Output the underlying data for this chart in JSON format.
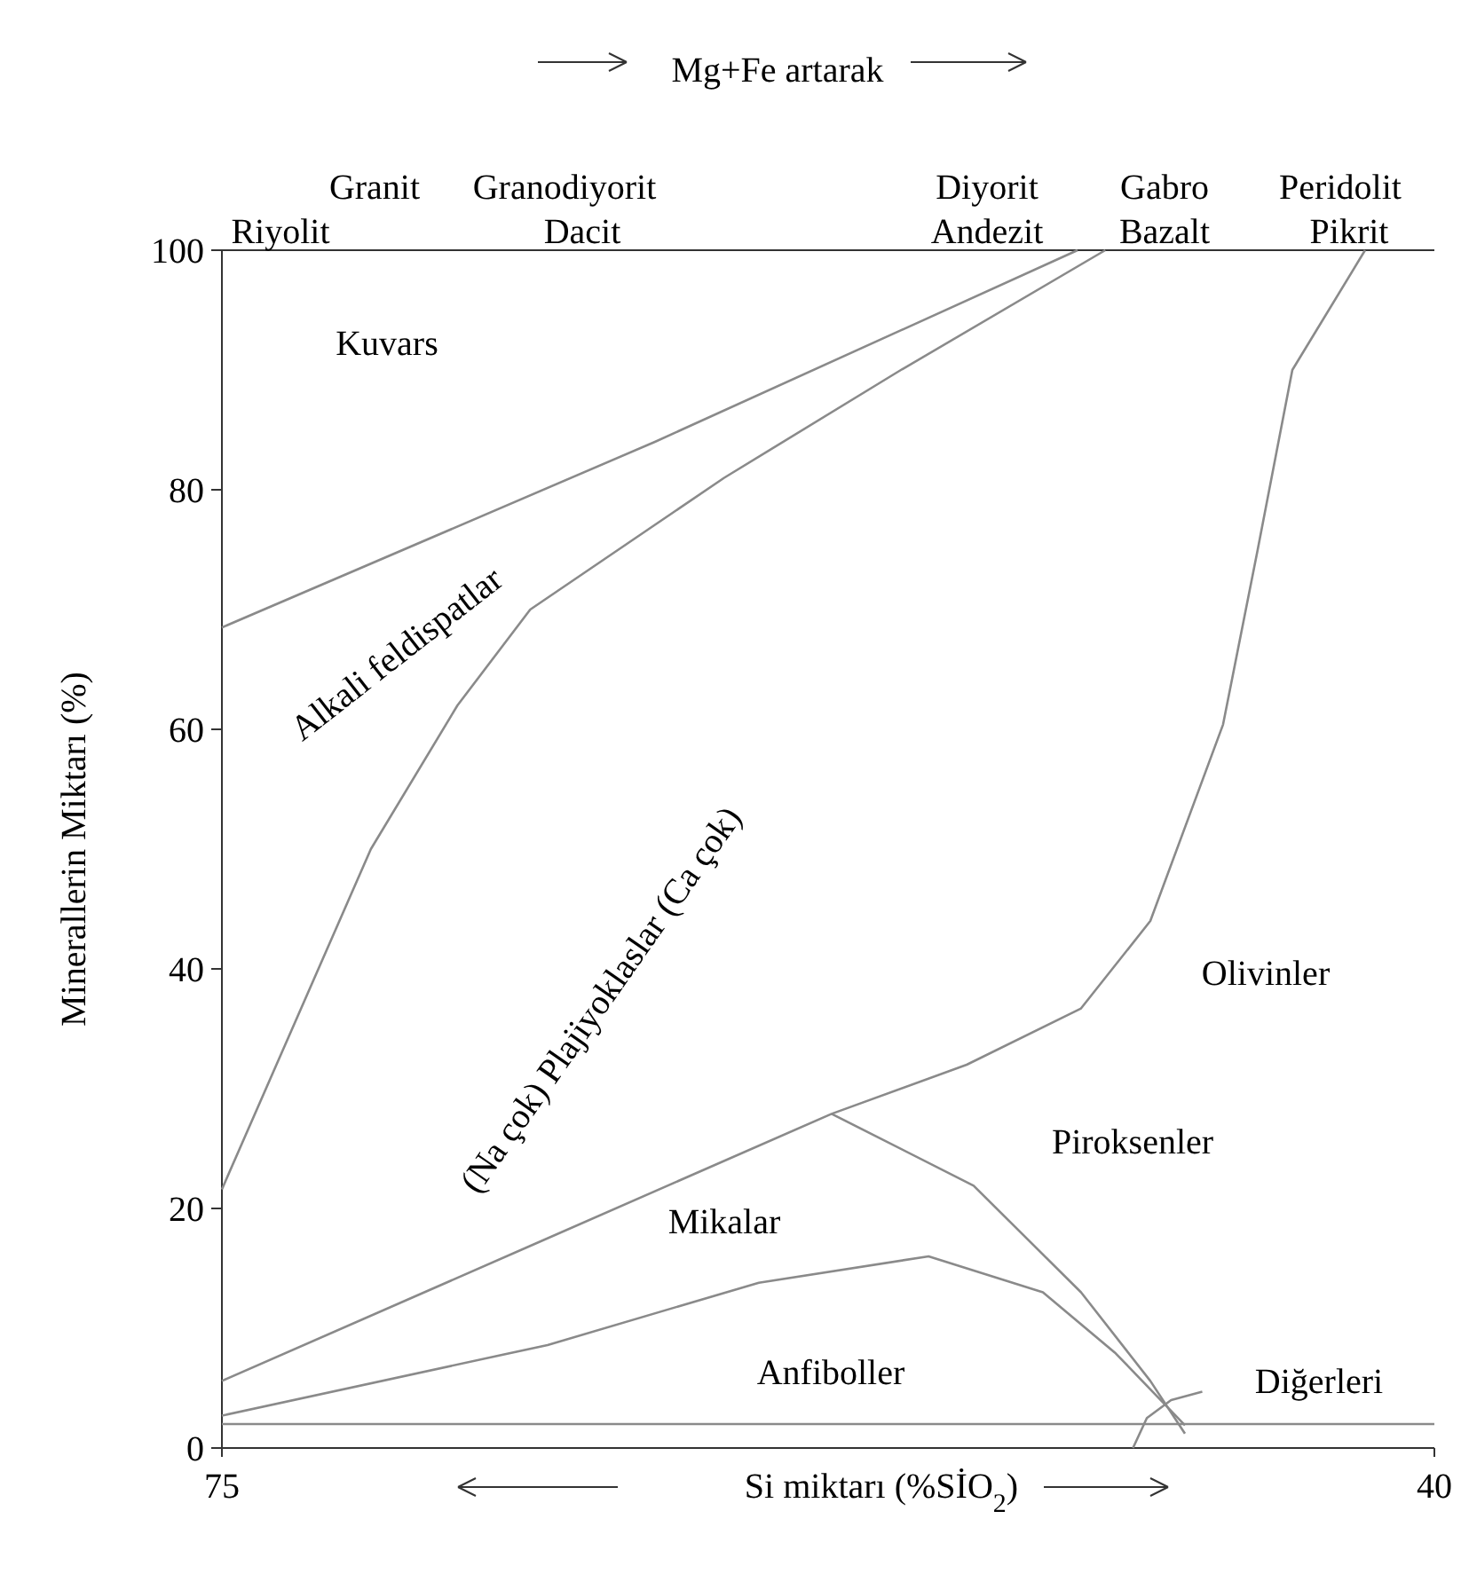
{
  "chart_data": {
    "type": "line",
    "title": "Mg+Fe artarak",
    "xlabel": "Si miktarı (%SİO$_{2}$)",
    "ylabel": "Minerallerin Miktarı (%)",
    "xlim": [
      75,
      40
    ],
    "xticks": [
      75,
      40
    ],
    "ylim": [
      0,
      100
    ],
    "yticks": [
      0,
      20,
      40,
      60,
      80,
      100
    ],
    "grid": false,
    "marker": "none",
    "line_style": "solid",
    "series": [
      {
        "color": "#8a8a8a",
        "x": [
          75,
          62.5,
          50.3
        ],
        "values": [
          68.5,
          84,
          100
        ]
      },
      {
        "color": "#8a8a8a",
        "x": [
          75,
          70.7,
          68.2,
          66.1,
          60.5,
          55.4,
          49.5
        ],
        "values": [
          21.6,
          50,
          62,
          70,
          81,
          90,
          100
        ]
      },
      {
        "color": "#8a8a8a",
        "x": [
          75,
          66,
          57.4,
          53.5,
          50.2,
          48.2,
          46.1,
          45.1,
          44.1,
          42
        ],
        "values": [
          5.6,
          17,
          27.9,
          32,
          36.7,
          44,
          60.4,
          75,
          90,
          100
        ]
      },
      {
        "color": "#8a8a8a",
        "x": [
          75,
          65.6,
          59.5,
          54.6,
          51.3,
          49.2,
          47.2
        ],
        "values": [
          2.7,
          8.6,
          13.8,
          16,
          13,
          7.9,
          1.9
        ]
      },
      {
        "color": "#8a8a8a",
        "x": [
          57.4,
          53.3,
          50.2,
          48.2,
          47.2
        ],
        "values": [
          27.9,
          21.9,
          13,
          5.6,
          1.2
        ]
      },
      {
        "color": "#8a8a8a",
        "x": [
          48.7,
          48.3,
          47.6,
          46.7
        ],
        "values": [
          0,
          2.5,
          4,
          4.7
        ]
      },
      {
        "color": "#8a8a8a",
        "x": [
          75,
          40
        ],
        "values": [
          2,
          2
        ]
      }
    ],
    "annotations": [
      "Kuvars",
      "Alkali feldispatlar",
      "(Na çok)  Plajiyoklaslar (Ca çok)",
      "Olivinler",
      "Piroksenler",
      "Mikalar",
      "Anfiboller",
      "Diğerleri",
      "Granit",
      "Granodiyorit",
      "Diyorit",
      "Gabro",
      "Peridolit",
      "Riyolit",
      "Dacit",
      "Andezit",
      "Bazalt",
      "Pikrit"
    ]
  }
}
